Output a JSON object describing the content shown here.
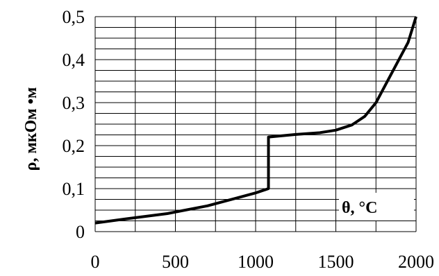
{
  "chart_data": {
    "type": "line",
    "xlabel": "θ, °C",
    "ylabel": "ρ, мкОм •м",
    "xlim": [
      0,
      2000
    ],
    "ylim": [
      0,
      0.5
    ],
    "grid": true,
    "x_ticks": [
      "0",
      "500",
      "1000",
      "1500",
      "2000"
    ],
    "y_ticks": [
      "0",
      "0,1",
      "0,2",
      "0,3",
      "0,4",
      "0,5"
    ],
    "series": [
      {
        "x": [
          0,
          200,
          450,
          700,
          900,
          1000,
          1080,
          1080,
          1250,
          1400,
          1500,
          1600,
          1680,
          1750,
          1850,
          1950,
          2000
        ],
        "y": [
          0.02,
          0.03,
          0.042,
          0.06,
          0.08,
          0.09,
          0.1,
          0.22,
          0.226,
          0.23,
          0.236,
          0.248,
          0.268,
          0.3,
          0.37,
          0.44,
          0.5
        ]
      }
    ]
  }
}
